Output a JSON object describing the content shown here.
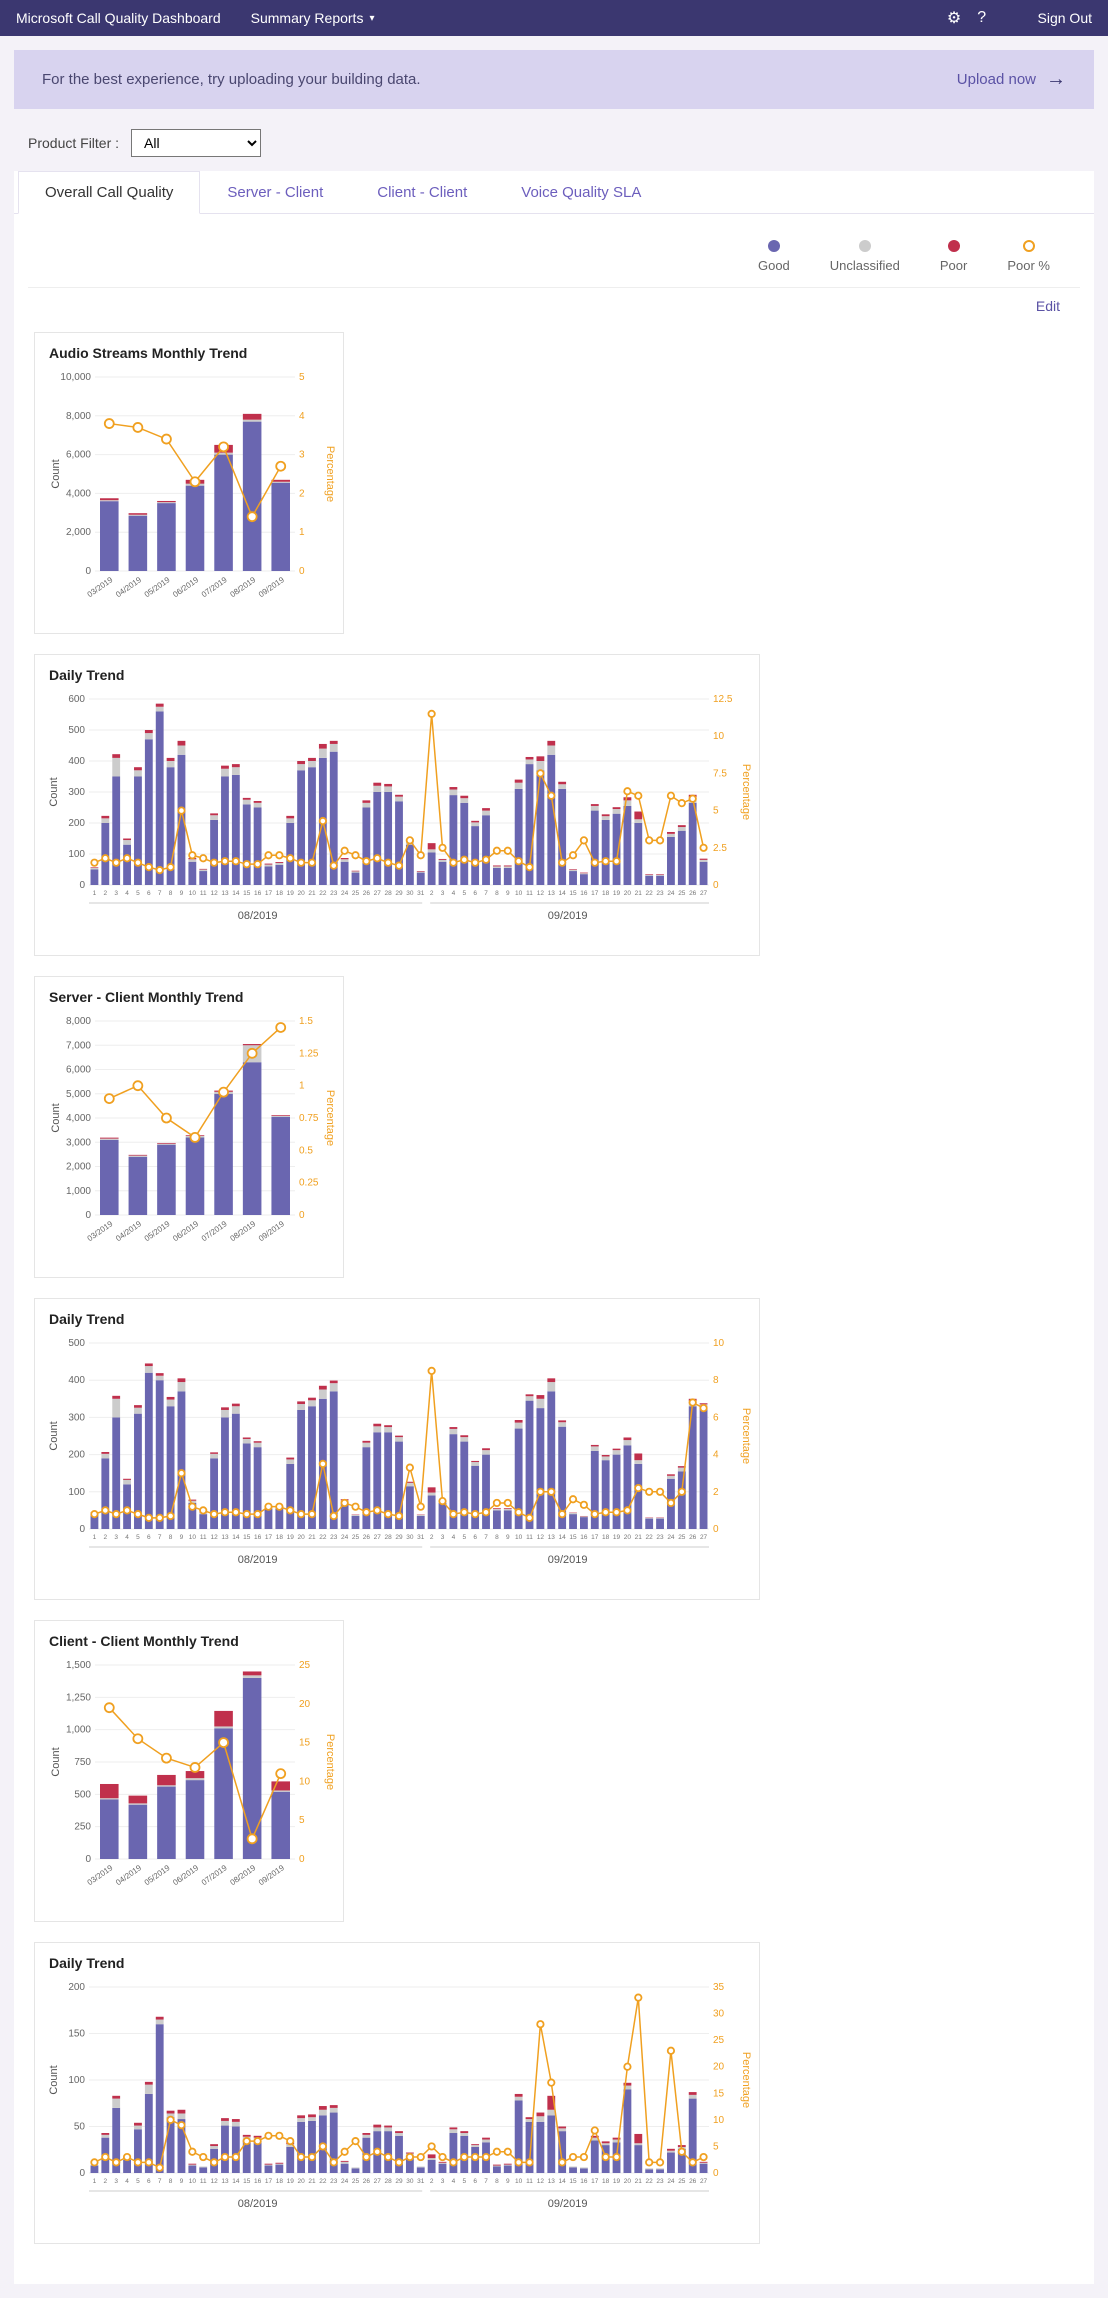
{
  "header": {
    "title": "Microsoft Call Quality Dashboard",
    "menu": "Summary Reports",
    "signout": "Sign Out"
  },
  "banner": {
    "msg": "For the best experience, try uploading your building data.",
    "upload": "Upload now"
  },
  "filter": {
    "label": "Product Filter :",
    "value": "All"
  },
  "tabs": [
    "Overall Call Quality",
    "Server - Client",
    "Client - Client",
    "Voice Quality SLA"
  ],
  "activeTab": 0,
  "legend": {
    "good": "Good",
    "unclassified": "Unclassified",
    "poor": "Poor",
    "poorpct": "Poor %",
    "colors": {
      "good": "#6a66b0",
      "unclassified": "#cccccc",
      "poor": "#c0304c",
      "pct": "#f0a020"
    }
  },
  "edit": "Edit",
  "axisLabels": {
    "count": "Count",
    "percentage": "Percentage"
  },
  "dailyMonthLabels": [
    "08/2019",
    "09/2019"
  ],
  "charts": {
    "audioMonthly": {
      "title": "Audio Streams Monthly Trend",
      "categories": [
        "03/2019",
        "04/2019",
        "05/2019",
        "06/2019",
        "07/2019",
        "08/2019",
        "09/2019"
      ],
      "yMax": 10000,
      "yStep": 2000,
      "y2Max": 5,
      "y2Step": 1,
      "good": [
        3600,
        2850,
        3500,
        4400,
        6000,
        7700,
        4550
      ],
      "unclass": [
        50,
        50,
        50,
        100,
        100,
        100,
        50
      ],
      "poor": [
        100,
        80,
        60,
        200,
        400,
        300,
        100
      ],
      "pct": [
        3.8,
        3.7,
        3.4,
        2.3,
        3.2,
        1.4,
        2.7
      ]
    },
    "audioDaily": {
      "title": "Daily Trend",
      "yMax": 600,
      "yStep": 100,
      "y2Max": 12.5,
      "y2Step": 2.5,
      "days": 57,
      "good": [
        50,
        200,
        350,
        130,
        350,
        470,
        560,
        380,
        420,
        75,
        45,
        210,
        350,
        355,
        260,
        250,
        60,
        65,
        200,
        370,
        380,
        410,
        430,
        75,
        40,
        250,
        300,
        300,
        270,
        130,
        40,
        105,
        75,
        290,
        265,
        190,
        225,
        55,
        55,
        310,
        390,
        370,
        420,
        310,
        45,
        35,
        240,
        210,
        230,
        255,
        200,
        30,
        30,
        155,
        175,
        265,
        75
      ],
      "unclass": [
        5,
        15,
        60,
        15,
        20,
        20,
        15,
        20,
        30,
        8,
        5,
        15,
        25,
        25,
        15,
        15,
        6,
        6,
        15,
        20,
        20,
        30,
        25,
        8,
        4,
        15,
        20,
        18,
        15,
        10,
        3,
        10,
        6,
        18,
        15,
        12,
        15,
        5,
        5,
        20,
        15,
        30,
        30,
        15,
        4,
        3,
        15,
        12,
        15,
        18,
        12,
        3,
        3,
        10,
        12,
        18,
        6
      ],
      "poor": [
        2,
        8,
        12,
        5,
        10,
        10,
        10,
        10,
        15,
        4,
        2,
        6,
        10,
        10,
        6,
        6,
        3,
        3,
        8,
        10,
        10,
        15,
        10,
        4,
        2,
        8,
        10,
        8,
        6,
        5,
        2,
        20,
        3,
        8,
        8,
        5,
        8,
        3,
        3,
        10,
        8,
        15,
        15,
        8,
        2,
        2,
        6,
        6,
        6,
        10,
        25,
        2,
        2,
        6,
        6,
        8,
        4
      ],
      "pct": [
        1.5,
        1.8,
        1.5,
        1.8,
        1.5,
        1.2,
        1.0,
        1.2,
        5.0,
        2.0,
        1.8,
        1.5,
        1.6,
        1.6,
        1.4,
        1.4,
        2.0,
        2.0,
        1.8,
        1.5,
        1.5,
        4.3,
        1.3,
        2.3,
        2.0,
        1.6,
        1.8,
        1.5,
        1.3,
        3.0,
        2.0,
        11.5,
        2.5,
        1.5,
        1.7,
        1.5,
        1.7,
        2.3,
        2.3,
        1.6,
        1.2,
        7.5,
        6.0,
        1.5,
        2.0,
        3.0,
        1.5,
        1.6,
        1.6,
        6.3,
        6.0,
        3.0,
        3.0,
        6.0,
        5.5,
        5.8,
        2.5
      ]
    },
    "serverMonthly": {
      "title": "Server - Client Monthly Trend",
      "categories": [
        "03/2019",
        "04/2019",
        "05/2019",
        "06/2019",
        "07/2019",
        "08/2019",
        "09/2019"
      ],
      "yMax": 8000,
      "yStep": 1000,
      "y2Max": 1.5,
      "y2Step": 0.25,
      "good": [
        3100,
        2400,
        2900,
        3200,
        5000,
        6300,
        4050
      ],
      "unclass": [
        50,
        50,
        40,
        60,
        80,
        700,
        40
      ],
      "poor": [
        40,
        30,
        30,
        30,
        50,
        50,
        30
      ],
      "pct": [
        0.9,
        1.0,
        0.75,
        0.6,
        0.95,
        1.25,
        1.45
      ]
    },
    "serverDaily": {
      "title": "Daily Trend",
      "yMax": 500,
      "yStep": 100,
      "y2Max": 10,
      "y2Step": 2,
      "days": 57,
      "good": [
        40,
        190,
        300,
        120,
        310,
        420,
        400,
        330,
        370,
        70,
        40,
        190,
        300,
        310,
        230,
        220,
        55,
        55,
        175,
        320,
        330,
        350,
        370,
        70,
        35,
        220,
        260,
        260,
        235,
        115,
        35,
        90,
        70,
        255,
        235,
        170,
        200,
        50,
        50,
        270,
        345,
        325,
        370,
        275,
        40,
        32,
        210,
        185,
        200,
        225,
        175,
        28,
        28,
        135,
        155,
        330,
        330
      ],
      "unclass": [
        4,
        12,
        50,
        12,
        16,
        18,
        12,
        18,
        25,
        6,
        4,
        12,
        20,
        20,
        12,
        12,
        5,
        5,
        12,
        16,
        16,
        25,
        22,
        7,
        3,
        12,
        16,
        14,
        12,
        9,
        3,
        8,
        5,
        14,
        12,
        10,
        12,
        4,
        4,
        16,
        12,
        25,
        25,
        12,
        3,
        2,
        12,
        10,
        12,
        14,
        10,
        2,
        2,
        8,
        10,
        14,
        5
      ],
      "poor": [
        1,
        5,
        8,
        3,
        7,
        7,
        7,
        7,
        10,
        3,
        1,
        4,
        7,
        7,
        4,
        4,
        2,
        2,
        5,
        7,
        7,
        10,
        7,
        3,
        1,
        5,
        7,
        5,
        4,
        3,
        1,
        14,
        2,
        5,
        5,
        3,
        5,
        2,
        2,
        7,
        5,
        10,
        10,
        5,
        1,
        1,
        4,
        4,
        4,
        7,
        18,
        1,
        1,
        4,
        4,
        6,
        3
      ],
      "pct": [
        0.8,
        1.0,
        0.8,
        1.0,
        0.8,
        0.6,
        0.6,
        0.7,
        3.0,
        1.2,
        1.0,
        0.8,
        0.9,
        0.9,
        0.8,
        0.8,
        1.2,
        1.2,
        1.0,
        0.8,
        0.8,
        3.5,
        0.7,
        1.4,
        1.2,
        0.9,
        1.0,
        0.8,
        0.7,
        3.3,
        1.2,
        8.5,
        1.5,
        0.8,
        0.9,
        0.8,
        0.9,
        1.4,
        1.4,
        0.9,
        0.6,
        2.0,
        2.0,
        0.8,
        1.6,
        1.3,
        0.8,
        0.9,
        0.9,
        1.0,
        2.2,
        2.0,
        2.0,
        1.4,
        2.0,
        6.8,
        6.5
      ]
    },
    "clientMonthly": {
      "title": "Client - Client Monthly Trend",
      "categories": [
        "03/2019",
        "04/2019",
        "05/2019",
        "06/2019",
        "07/2019",
        "08/2019",
        "09/2019"
      ],
      "yMax": 1500,
      "yStep": 250,
      "y2Max": 25,
      "y2Step": 5,
      "good": [
        460,
        420,
        560,
        610,
        1010,
        1400,
        520
      ],
      "unclass": [
        10,
        10,
        10,
        15,
        15,
        20,
        10
      ],
      "poor": [
        110,
        60,
        80,
        55,
        120,
        30,
        70
      ],
      "pct": [
        19.5,
        15.5,
        13.0,
        11.8,
        15.0,
        2.6,
        11.0
      ]
    },
    "clientDaily": {
      "title": "Daily Trend",
      "yMax": 200,
      "yStep": 50,
      "y2Max": 35,
      "y2Step": 5,
      "days": 57,
      "good": [
        8,
        38,
        70,
        14,
        47,
        85,
        160,
        60,
        58,
        8,
        6,
        26,
        51,
        50,
        36,
        35,
        8,
        9,
        28,
        55,
        56,
        62,
        65,
        10,
        5,
        38,
        45,
        45,
        40,
        19,
        6,
        14,
        10,
        43,
        40,
        28,
        33,
        7,
        8,
        78,
        55,
        55,
        62,
        45,
        6,
        5,
        35,
        30,
        33,
        90,
        30,
        4,
        4,
        22,
        26,
        80,
        10
      ],
      "unclass": [
        1,
        3,
        10,
        2,
        4,
        10,
        5,
        4,
        6,
        1,
        1,
        3,
        5,
        5,
        3,
        3,
        1,
        1,
        3,
        4,
        4,
        6,
        5,
        2,
        1,
        3,
        4,
        4,
        3,
        2,
        1,
        2,
        1,
        4,
        3,
        2,
        3,
        1,
        1,
        4,
        3,
        6,
        6,
        3,
        1,
        1,
        3,
        2,
        3,
        4,
        2,
        1,
        1,
        2,
        2,
        4,
        1
      ],
      "poor": [
        0,
        2,
        3,
        1,
        3,
        3,
        3,
        3,
        4,
        1,
        0,
        2,
        3,
        3,
        2,
        2,
        1,
        1,
        2,
        3,
        3,
        4,
        3,
        1,
        0,
        2,
        3,
        2,
        2,
        1,
        0,
        4,
        1,
        2,
        2,
        1,
        2,
        1,
        1,
        3,
        2,
        4,
        15,
        2,
        0,
        0,
        2,
        2,
        2,
        3,
        10,
        0,
        0,
        2,
        2,
        3,
        1
      ],
      "pct": [
        2,
        3,
        2,
        3,
        2,
        2,
        1,
        10,
        9,
        4,
        3,
        2,
        3,
        3,
        6,
        6,
        7,
        7,
        6,
        3,
        3,
        5,
        2,
        4,
        6,
        3,
        4,
        3,
        2,
        3,
        3,
        5,
        3,
        2,
        3,
        3,
        3,
        4,
        4,
        2,
        2,
        28,
        17,
        2,
        3,
        3,
        8,
        3,
        3,
        20,
        33,
        2,
        2,
        23,
        4,
        2,
        3
      ]
    }
  }
}
